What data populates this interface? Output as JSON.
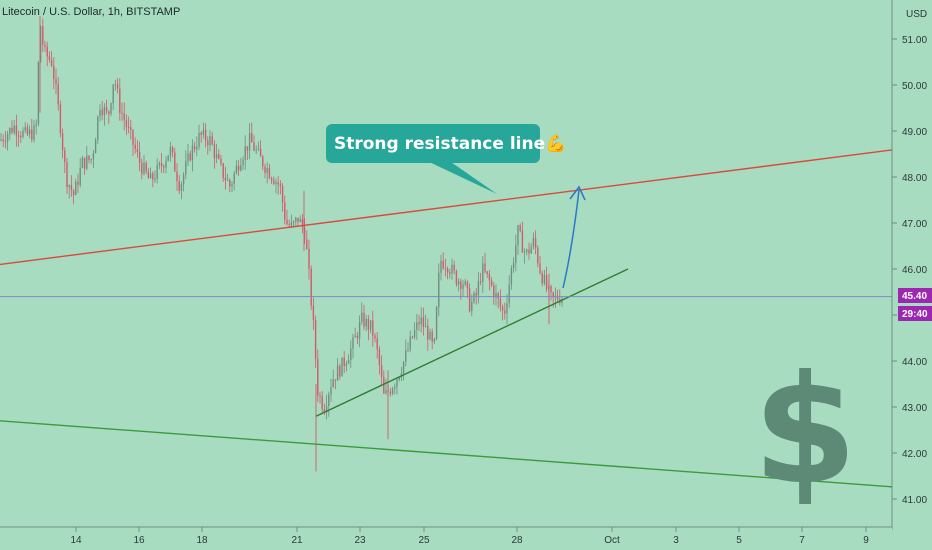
{
  "header": {
    "symbol_title": "Litecoin / U.S. Dollar, 1h, BITSTAMP"
  },
  "price_axis": {
    "currency_label": "USD"
  },
  "badges": {
    "last_price": "45.40",
    "countdown": "29:40",
    "color": "#9c27b0"
  },
  "annotations": {
    "callout_text": "Strong resistance line💪",
    "callout_color": "#27a69a",
    "dollar_sign": "$",
    "arrow_color": "#2e78c8"
  },
  "chart_data": {
    "type": "candlestick",
    "title": "Litecoin / U.S. Dollar, 1h, BITSTAMP",
    "ylabel": "USD",
    "ylim": [
      40.6,
      51.8
    ],
    "y_ticks": [
      41.0,
      42.0,
      43.0,
      44.0,
      45.0,
      46.0,
      47.0,
      48.0,
      49.0,
      50.0,
      51.0
    ],
    "y_tick_labels": [
      "41.00",
      "42.00",
      "43.00",
      "44.00",
      "45.00",
      "46.00",
      "47.00",
      "48.00",
      "49.00",
      "50.00",
      "51.00"
    ],
    "x_ticks": [
      "14",
      "16",
      "18",
      "21",
      "23",
      "25",
      "28",
      "Oct",
      "3",
      "5",
      "7",
      "9"
    ],
    "last_price": 45.4,
    "price_path": [
      [
        0,
        48.8
      ],
      [
        14,
        49.1
      ],
      [
        26,
        48.9
      ],
      [
        36,
        49.0
      ],
      [
        40,
        51.4
      ],
      [
        44,
        50.7
      ],
      [
        52,
        50.5
      ],
      [
        60,
        49.2
      ],
      [
        66,
        48.0
      ],
      [
        74,
        47.6
      ],
      [
        82,
        48.3
      ],
      [
        92,
        48.4
      ],
      [
        100,
        49.6
      ],
      [
        108,
        49.3
      ],
      [
        114,
        50.2
      ],
      [
        120,
        49.5
      ],
      [
        130,
        48.9
      ],
      [
        140,
        48.3
      ],
      [
        150,
        47.9
      ],
      [
        160,
        48.2
      ],
      [
        170,
        48.6
      ],
      [
        180,
        47.8
      ],
      [
        190,
        48.5
      ],
      [
        200,
        48.9
      ],
      [
        210,
        48.8
      ],
      [
        220,
        48.2
      ],
      [
        230,
        47.8
      ],
      [
        240,
        48.4
      ],
      [
        250,
        48.8
      ],
      [
        260,
        48.4
      ],
      [
        270,
        48.1
      ],
      [
        280,
        47.8
      ],
      [
        286,
        47.0
      ],
      [
        292,
        46.9
      ],
      [
        298,
        47.1
      ],
      [
        305,
        46.8
      ],
      [
        310,
        45.6
      ],
      [
        314,
        44.6
      ],
      [
        318,
        43.3
      ],
      [
        324,
        43.0
      ],
      [
        332,
        43.6
      ],
      [
        342,
        43.9
      ],
      [
        352,
        44.3
      ],
      [
        362,
        44.9
      ],
      [
        372,
        44.7
      ],
      [
        378,
        44.1
      ],
      [
        384,
        43.2
      ],
      [
        390,
        43.4
      ],
      [
        396,
        43.6
      ],
      [
        404,
        44.0
      ],
      [
        412,
        44.5
      ],
      [
        420,
        44.9
      ],
      [
        428,
        44.6
      ],
      [
        434,
        44.2
      ],
      [
        440,
        46.2
      ],
      [
        448,
        46.1
      ],
      [
        456,
        45.8
      ],
      [
        464,
        45.7
      ],
      [
        470,
        45.2
      ],
      [
        476,
        45.4
      ],
      [
        482,
        46.0
      ],
      [
        490,
        45.7
      ],
      [
        498,
        45.3
      ],
      [
        504,
        45.0
      ],
      [
        510,
        45.8
      ],
      [
        518,
        46.8
      ],
      [
        526,
        46.3
      ],
      [
        534,
        46.6
      ],
      [
        540,
        46.0
      ],
      [
        546,
        45.6
      ],
      [
        552,
        45.3
      ],
      [
        558,
        45.4
      ],
      [
        562,
        45.4
      ]
    ],
    "trendlines": [
      {
        "name": "resistance",
        "color": "#d84a3c",
        "from": [
          0,
          46.1
        ],
        "to": [
          932,
          48.7
        ]
      },
      {
        "name": "ascending support",
        "color": "#2f7d2f",
        "from": [
          316,
          42.8
        ],
        "to": [
          628,
          46.0
        ]
      },
      {
        "name": "lower support",
        "color": "#3c9a3c",
        "from": [
          0,
          42.7
        ],
        "to": [
          932,
          41.2
        ]
      }
    ],
    "grid": false,
    "legend": "none"
  }
}
